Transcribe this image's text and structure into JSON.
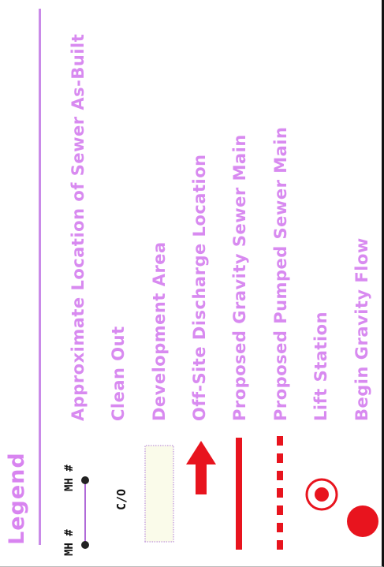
{
  "legend": {
    "title": "Legend",
    "mh_label": "MH #",
    "cleanout_label": "C/O",
    "items": [
      {
        "label": "Approximate Location of Sewer As-Built",
        "symbol": "manhole-line-symbol"
      },
      {
        "label": "Clean Out",
        "symbol": "cleanout-text-symbol"
      },
      {
        "label": "Development Area",
        "symbol": "development-area-box"
      },
      {
        "label": "Off-Site Discharge Location",
        "symbol": "arrow-icon"
      },
      {
        "label": "Proposed Gravity Sewer Main",
        "symbol": "solid-red-line"
      },
      {
        "label": "Proposed Pumped Sewer Main",
        "symbol": "dashed-red-line"
      },
      {
        "label": "Lift Station",
        "symbol": "lift-station-icon"
      },
      {
        "label": "Begin Gravity Flow",
        "symbol": "gravity-flow-icon"
      }
    ]
  },
  "colors": {
    "label_purple": "#d88af0",
    "line_red": "#e8141e",
    "symbol_dark": "#222222",
    "dev_area_fill": "#fafbea"
  }
}
